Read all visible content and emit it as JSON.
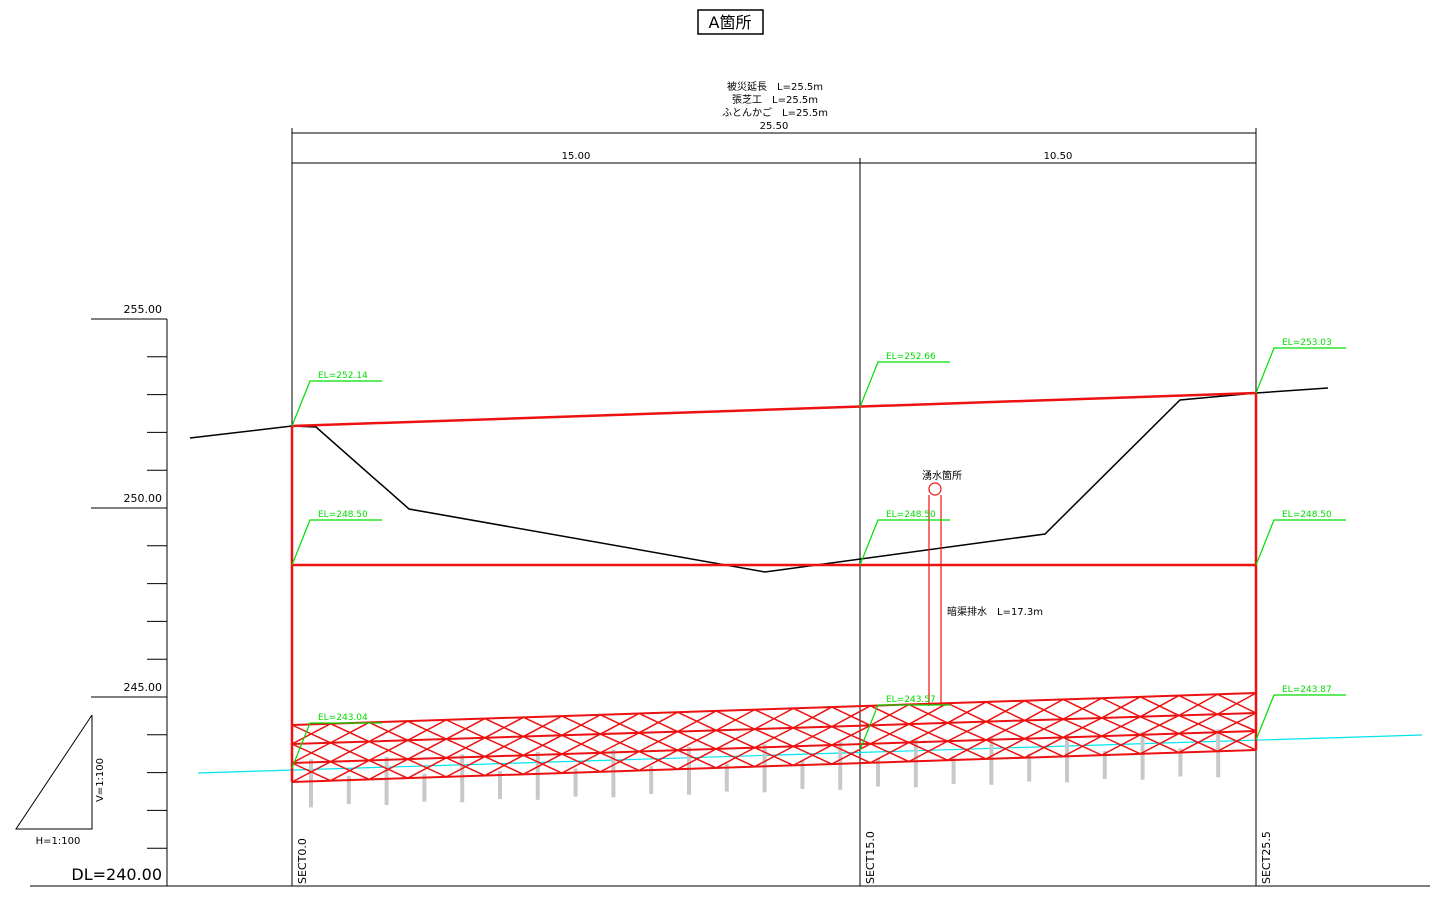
{
  "title": "A箇所",
  "dimensions": {
    "notes": [
      "被災延長　L=25.5m",
      "張芝工　L=25.5m",
      "ふとんかご　L=25.5m"
    ],
    "total": "25.50",
    "segments": [
      "15.00",
      "10.50"
    ]
  },
  "scale": {
    "elevations": [
      "255.00",
      "250.00",
      "245.00"
    ],
    "datum": "DL=240.00",
    "vertical": "V=1:100",
    "horizontal": "H=1:100"
  },
  "sections": [
    "SECT0.0",
    "SECT15.0",
    "SECT25.5"
  ],
  "elevation_labels": [
    "EL=252.14",
    "EL=252.66",
    "EL=253.03",
    "EL=248.50",
    "EL=248.50",
    "EL=248.50",
    "EL=243.04",
    "EL=243.57",
    "EL=243.87"
  ],
  "annotations": {
    "spring": "湧水箇所",
    "drain": "暗渠排水　L=17.3m"
  }
}
